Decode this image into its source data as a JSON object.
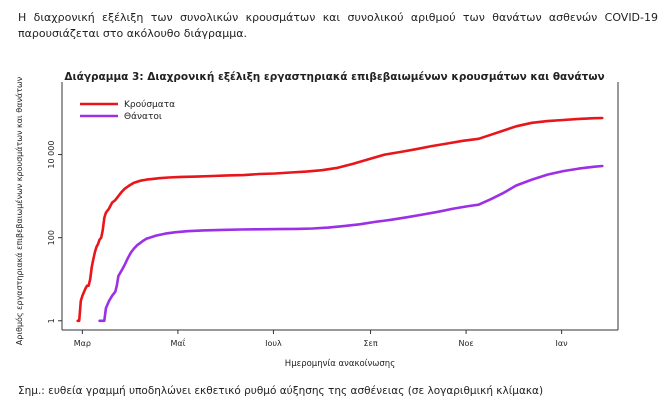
{
  "intro_text": "Η διαχρονική εξέλιξη των συνολικών κρουσμάτων και συνολικού αριθμού των θανάτων ασθενών COVID-19 παρουσιάζεται στο ακόλουθο διάγραμμα.",
  "footnote": "Σημ.: ευθεία γραμμή υποδηλώνει εκθετικό ρυθμό αύξησης της ασθένειας (σε λογαριθμική κλίμακα)",
  "chart_data": {
    "type": "line",
    "title": "Διάγραμμα 3: Διαχρονική εξέλιξη εργαστηριακά επιβεβαιωμένων κρουσμάτων και θανάτων",
    "xlabel": "Ημερομηνία ανακοίνωσης",
    "ylabel": "Αριθμός εργαστηριακά επιβεβαιωμένων κρουσμάτων και θανάτων",
    "y_scale": "log",
    "ylim": [
      0.6,
      400000
    ],
    "y_ticks": [
      {
        "value": 1,
        "label": "1"
      },
      {
        "value": 100,
        "label": "100"
      },
      {
        "value": 10000,
        "label": "10 000"
      }
    ],
    "x_ticks": [
      {
        "value": 3,
        "label": "Μαρ"
      },
      {
        "value": 64,
        "label": "Μαΐ"
      },
      {
        "value": 125,
        "label": "Ιουλ"
      },
      {
        "value": 187,
        "label": "Σεπ"
      },
      {
        "value": 248,
        "label": "Νοε"
      },
      {
        "value": 309,
        "label": "Ιαν"
      }
    ],
    "xlim": [
      -10,
      345
    ],
    "legend_position": "top-left",
    "grid": false,
    "series": [
      {
        "name": "Κρούσματα",
        "color": "#e8161b",
        "points": [
          [
            0,
            1
          ],
          [
            1,
            1
          ],
          [
            2,
            3
          ],
          [
            3,
            4
          ],
          [
            5,
            6
          ],
          [
            6,
            7
          ],
          [
            7,
            7
          ],
          [
            8,
            10
          ],
          [
            9,
            20
          ],
          [
            10,
            30
          ],
          [
            11,
            45
          ],
          [
            12,
            60
          ],
          [
            13,
            70
          ],
          [
            14,
            90
          ],
          [
            15,
            100
          ],
          [
            16,
            150
          ],
          [
            17,
            300
          ],
          [
            18,
            400
          ],
          [
            20,
            500
          ],
          [
            22,
            700
          ],
          [
            24,
            800
          ],
          [
            26,
            1000
          ],
          [
            28,
            1250
          ],
          [
            30,
            1500
          ],
          [
            33,
            1800
          ],
          [
            36,
            2100
          ],
          [
            40,
            2350
          ],
          [
            44,
            2500
          ],
          [
            48,
            2600
          ],
          [
            52,
            2700
          ],
          [
            58,
            2800
          ],
          [
            66,
            2900
          ],
          [
            76,
            2950
          ],
          [
            86,
            3050
          ],
          [
            96,
            3150
          ],
          [
            106,
            3200
          ],
          [
            116,
            3400
          ],
          [
            126,
            3500
          ],
          [
            136,
            3700
          ],
          [
            146,
            3900
          ],
          [
            156,
            4200
          ],
          [
            166,
            4800
          ],
          [
            176,
            6000
          ],
          [
            186,
            7800
          ],
          [
            196,
            10000
          ],
          [
            206,
            11500
          ],
          [
            216,
            13500
          ],
          [
            226,
            16000
          ],
          [
            236,
            18500
          ],
          [
            246,
            21500
          ],
          [
            256,
            24000
          ],
          [
            264,
            30000
          ],
          [
            272,
            38000
          ],
          [
            280,
            48000
          ],
          [
            290,
            58000
          ],
          [
            300,
            64000
          ],
          [
            310,
            68000
          ],
          [
            320,
            72000
          ],
          [
            330,
            75000
          ],
          [
            335,
            76000
          ]
        ]
      },
      {
        "name": "Θάνατοι",
        "color": "#9b30e6",
        "points": [
          [
            14,
            1
          ],
          [
            16,
            1
          ],
          [
            17,
            1
          ],
          [
            18,
            2
          ],
          [
            20,
            3
          ],
          [
            22,
            4
          ],
          [
            24,
            5
          ],
          [
            25,
            7
          ],
          [
            26,
            12
          ],
          [
            28,
            16
          ],
          [
            30,
            22
          ],
          [
            32,
            32
          ],
          [
            34,
            44
          ],
          [
            36,
            55
          ],
          [
            38,
            66
          ],
          [
            40,
            75
          ],
          [
            42,
            85
          ],
          [
            44,
            95
          ],
          [
            46,
            100
          ],
          [
            50,
            112
          ],
          [
            56,
            125
          ],
          [
            62,
            135
          ],
          [
            70,
            143
          ],
          [
            80,
            150
          ],
          [
            92,
            154
          ],
          [
            104,
            157
          ],
          [
            116,
            159
          ],
          [
            128,
            161
          ],
          [
            140,
            163
          ],
          [
            150,
            166
          ],
          [
            160,
            175
          ],
          [
            170,
            190
          ],
          [
            180,
            210
          ],
          [
            190,
            240
          ],
          [
            200,
            270
          ],
          [
            210,
            310
          ],
          [
            220,
            360
          ],
          [
            230,
            420
          ],
          [
            240,
            500
          ],
          [
            250,
            580
          ],
          [
            256,
            620
          ],
          [
            264,
            850
          ],
          [
            272,
            1200
          ],
          [
            280,
            1800
          ],
          [
            290,
            2500
          ],
          [
            300,
            3300
          ],
          [
            310,
            4000
          ],
          [
            320,
            4600
          ],
          [
            330,
            5100
          ],
          [
            335,
            5300
          ]
        ]
      }
    ]
  }
}
